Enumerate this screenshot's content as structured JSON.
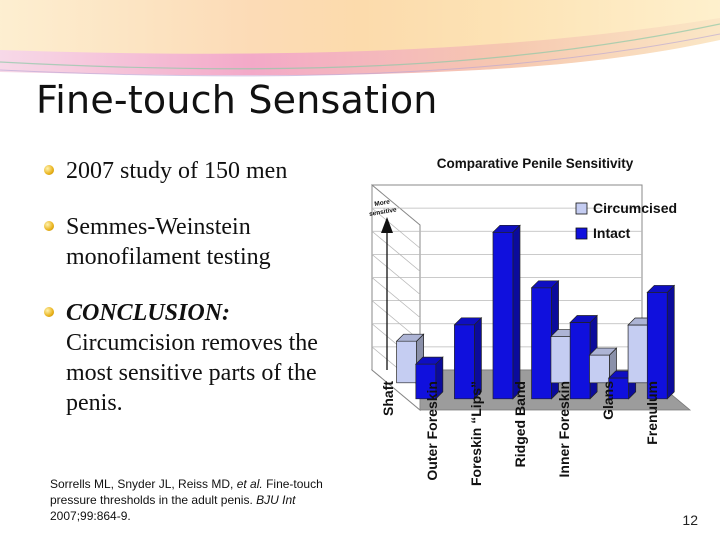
{
  "slide": {
    "title": "Fine-touch Sensation",
    "bullets": [
      {
        "text": "2007 study of 150 men"
      },
      {
        "text": "Semmes-Weinstein monofilament testing"
      },
      {
        "label": "CONCLUSION:",
        "text": "Circumcision removes the most sensitive parts of the penis."
      }
    ],
    "citation": {
      "authors": "Sorrells ML, Snyder JL, Reiss MD, ",
      "etal": "et al.",
      "title": "Fine-touch pressure thresholds in the adult penis. ",
      "journal": "BJU Int",
      "ref": " 2007;99:864-9."
    },
    "page_number": "12"
  },
  "colors": {
    "circumcised": "#c5cdf2",
    "intact": "#1010dd",
    "bullet": "#e9b21a"
  },
  "chart_data": {
    "type": "bar",
    "title": "Comparative Penile Sensitivity",
    "categories": [
      "Shaft",
      "Outer Foreskin",
      "Foreskin “Lips”",
      "Ridged Band",
      "Inner Foreskin",
      "Glans",
      "Frenulum"
    ],
    "series": [
      {
        "name": "Circumcised",
        "values": [
          1.8,
          null,
          null,
          null,
          2.0,
          1.2,
          2.5
        ]
      },
      {
        "name": "Intact",
        "values": [
          1.5,
          3.2,
          7.2,
          4.8,
          3.3,
          0.9,
          4.6
        ]
      }
    ],
    "annotation": "More sensitive",
    "legend_position": "top-right",
    "grid": true,
    "ylim": [
      0,
      8
    ]
  }
}
